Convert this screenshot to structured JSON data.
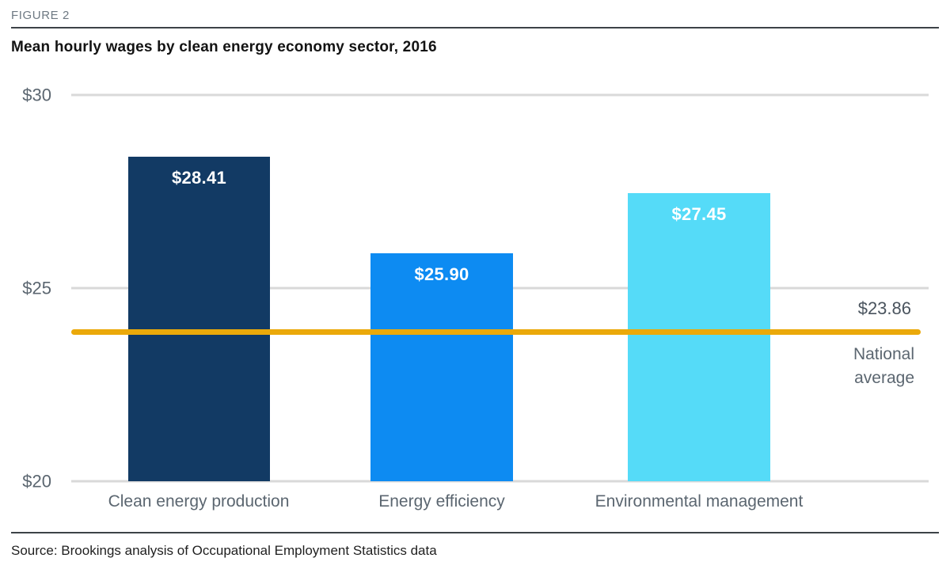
{
  "figure_label": "FIGURE 2",
  "title": "Mean hourly wages by clean energy economy sector, 2016",
  "source": "Source: Brookings analysis of Occupational Employment Statistics data",
  "colors": {
    "navy": "#123a64",
    "blue": "#0d8bf2",
    "cyan": "#55dbf8",
    "gold": "#eba90a",
    "gridline": "#d9d9d9",
    "axis_text": "#5b6670",
    "rule": "#3d4347"
  },
  "chart_data": {
    "type": "bar",
    "title": "Mean hourly wages by clean energy economy sector, 2016",
    "categories": [
      "Clean energy production",
      "Energy efficiency",
      "Environmental management"
    ],
    "values": [
      28.41,
      25.9,
      27.45
    ],
    "bars": [
      {
        "category": "Clean energy production",
        "value": 28.41,
        "label": "$28.41",
        "color": "#123a64"
      },
      {
        "category": "Energy efficiency",
        "value": 25.9,
        "label": "$25.90",
        "color": "#0d8bf2"
      },
      {
        "category": "Environmental management",
        "value": 27.45,
        "label": "$27.45",
        "color": "#55dbf8"
      }
    ],
    "yticks": [
      {
        "value": 30,
        "label": "$30"
      },
      {
        "value": 25,
        "label": "$25"
      },
      {
        "value": 20,
        "label": "$20"
      }
    ],
    "ylim": [
      20,
      30
    ],
    "reference_line": {
      "value": 23.86,
      "label": "$23.86",
      "caption": "National average",
      "color": "#eba90a"
    },
    "grid": true,
    "legend": false,
    "xlabel": "",
    "ylabel": ""
  }
}
